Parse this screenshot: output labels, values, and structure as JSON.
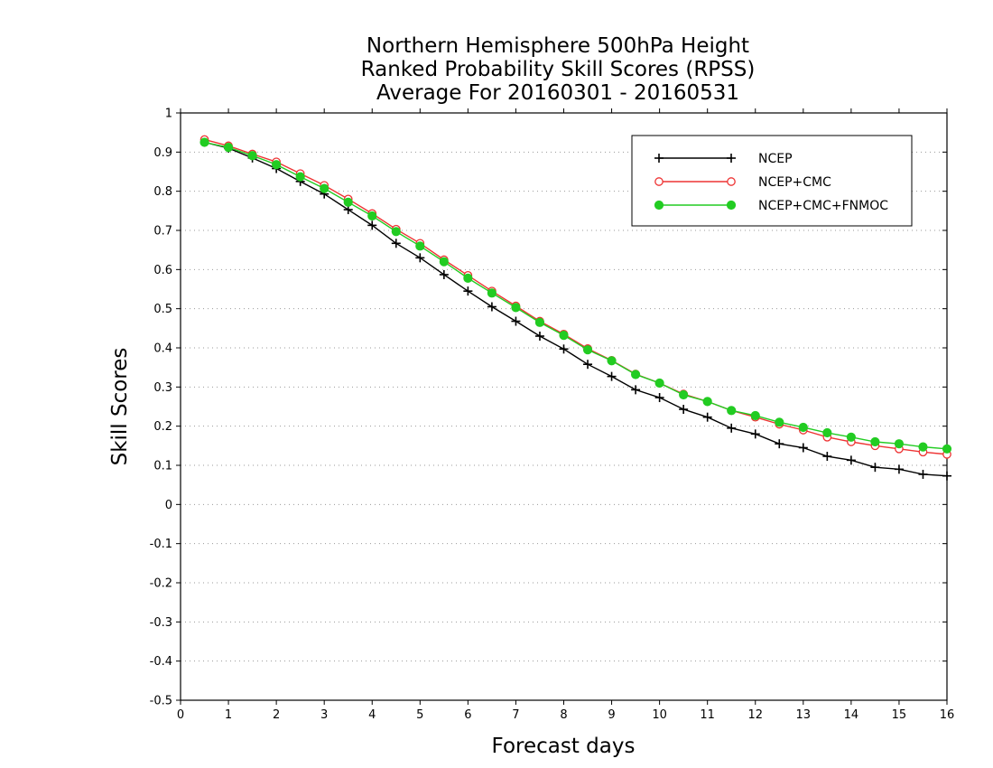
{
  "chart_data": {
    "type": "line",
    "title": [
      "Northern Hemisphere 500hPa Height",
      "Ranked Probability Skill Scores (RPSS)",
      "Average For 20160301 - 20160531"
    ],
    "xlabel": "Forecast days",
    "ylabel": "Skill Scores",
    "xlim": [
      0,
      16
    ],
    "ylim": [
      -0.5,
      1
    ],
    "x_ticks": [
      0,
      1,
      2,
      3,
      4,
      5,
      6,
      7,
      8,
      9,
      10,
      11,
      12,
      13,
      14,
      15,
      16
    ],
    "x_tick_labels": [
      "0",
      "1",
      "2",
      "3",
      "4",
      "5",
      "6",
      "7",
      "8",
      "9",
      "10",
      "11",
      "12",
      "13",
      "14",
      "15",
      "16"
    ],
    "y_ticks": [
      -0.5,
      -0.4,
      -0.3,
      -0.2,
      -0.1,
      0,
      0.1,
      0.2,
      0.3,
      0.4,
      0.5,
      0.6,
      0.7,
      0.8,
      0.9,
      1
    ],
    "y_tick_labels": [
      "-0.5",
      "-0.4",
      "-0.3",
      "-0.2",
      "-0.1",
      "0",
      "0.1",
      "0.2",
      "0.3",
      "0.4",
      "0.5",
      "0.6",
      "0.7",
      "0.8",
      "0.9",
      "1"
    ],
    "grid": "horizontal-dotted",
    "legend_position": "top-right",
    "x": [
      0.5,
      1,
      1.5,
      2,
      2.5,
      3,
      3.5,
      4,
      4.5,
      5,
      5.5,
      6,
      6.5,
      7,
      7.5,
      8,
      8.5,
      9,
      9.5,
      10,
      10.5,
      11,
      11.5,
      12,
      12.5,
      13,
      13.5,
      14,
      14.5,
      15,
      15.5,
      16
    ],
    "series": [
      {
        "name": "NCEP",
        "color": "#000000",
        "marker": "plus",
        "values": [
          0.925,
          0.91,
          0.885,
          0.858,
          0.825,
          0.793,
          0.753,
          0.713,
          0.667,
          0.63,
          0.587,
          0.545,
          0.505,
          0.468,
          0.43,
          0.397,
          0.358,
          0.327,
          0.293,
          0.273,
          0.243,
          0.223,
          0.195,
          0.18,
          0.155,
          0.145,
          0.123,
          0.113,
          0.095,
          0.09,
          0.077,
          0.073
        ]
      },
      {
        "name": "NCEP+CMC",
        "color": "#ee3333",
        "marker": "open-circle",
        "values": [
          0.932,
          0.916,
          0.895,
          0.875,
          0.845,
          0.815,
          0.78,
          0.743,
          0.703,
          0.667,
          0.625,
          0.585,
          0.545,
          0.507,
          0.468,
          0.435,
          0.398,
          0.368,
          0.333,
          0.31,
          0.282,
          0.263,
          0.24,
          0.223,
          0.205,
          0.19,
          0.172,
          0.16,
          0.15,
          0.142,
          0.134,
          0.128
        ]
      },
      {
        "name": "NCEP+CMC+FNMOC",
        "color": "#22cc22",
        "marker": "filled-circle",
        "values": [
          0.925,
          0.912,
          0.891,
          0.868,
          0.837,
          0.807,
          0.772,
          0.737,
          0.697,
          0.66,
          0.62,
          0.578,
          0.54,
          0.503,
          0.465,
          0.432,
          0.395,
          0.367,
          0.332,
          0.31,
          0.28,
          0.263,
          0.24,
          0.227,
          0.21,
          0.197,
          0.183,
          0.172,
          0.16,
          0.155,
          0.147,
          0.142
        ]
      }
    ]
  }
}
